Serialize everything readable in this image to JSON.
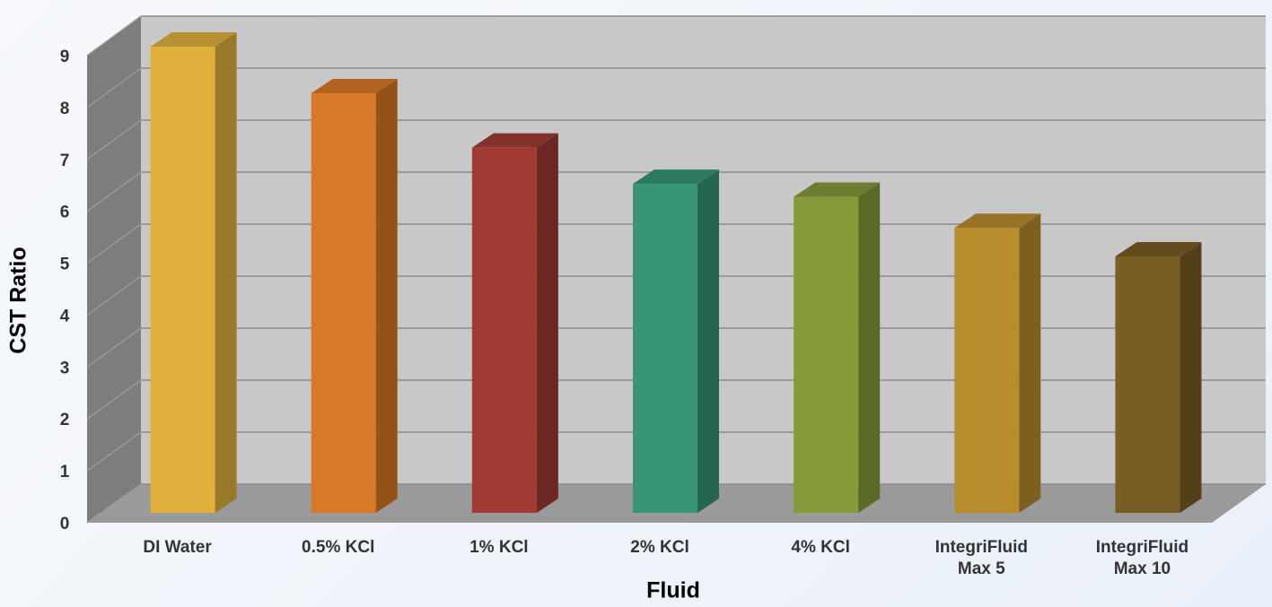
{
  "chart_data": {
    "type": "bar3d",
    "x_label": "Fluid",
    "y_label": "CST Ratio",
    "categories": [
      "DI Water",
      "0.5% KCl",
      "1% KCl",
      "2% KCl",
      "4% KCl",
      "IntegriFluid Max 5",
      "IntegriFluid Max 10"
    ],
    "values": [
      9.0,
      8.1,
      7.05,
      6.35,
      6.1,
      5.5,
      4.95
    ],
    "colors": [
      "#e1b03c",
      "#d97828",
      "#a03a33",
      "#379673",
      "#869a3a",
      "#b88c2d",
      "#7a5c25"
    ],
    "ylim": [
      0,
      9
    ],
    "yticks": [
      0,
      1,
      2,
      3,
      4,
      5,
      6,
      7,
      8,
      9
    ],
    "grid": true
  }
}
